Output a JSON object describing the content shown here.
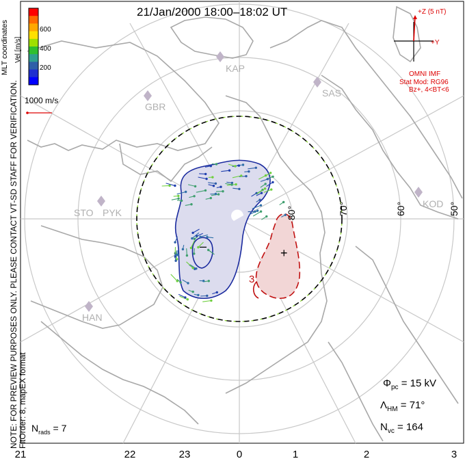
{
  "title": "21/Jan/2000 18:00–18:02 UT",
  "note": [
    "NOTE: FOR PREVIEW PURPOSES ONLY. PLEASE CONTACT VT-SD STAFF FOR VERIFICATION.",
    "FitOrder: 8, mapEX format"
  ],
  "coord_label": "MLT coordinates",
  "colorbar": {
    "title": "Vel [m/s]",
    "ticks": [
      "600",
      "400",
      "200"
    ],
    "colors": [
      "#ff0000",
      "#ff6a00",
      "#ffa800",
      "#ffe000",
      "#9fe000",
      "#2fbf2f",
      "#2f9f8f",
      "#2f5fa8",
      "#1f2fd0",
      "#0000ff"
    ]
  },
  "velocity_reference": "1000 m/s",
  "imf": {
    "z_label": "+Z (5 nT)",
    "y_label": "+Y",
    "source": "OMNI IMF",
    "model": "Stat Mod: RG96",
    "condition": "Bz+, 4<BT<6"
  },
  "stats": {
    "phi_pc_label": "Φ",
    "phi_pc_sub": "pc",
    "phi_pc_value": "= 15 kV",
    "lambda_hm_label": "Λ",
    "lambda_hm_sub": "HM",
    "lambda_hm_value": "= 71°",
    "n_vc_label": "N",
    "n_vc_sub": "vc",
    "n_vc_value": "= 164"
  },
  "nrads": {
    "label": "N",
    "sub": "rads",
    "value": "= 7"
  },
  "mlt_ticks": [
    "21",
    "22",
    "23",
    "0",
    "1",
    "2",
    "3"
  ],
  "lat_labels": [
    "80°",
    "70°",
    "60°",
    "50°"
  ],
  "stations": [
    "KAP",
    "SAS",
    "GBR",
    "STO",
    "PYK",
    "KOD",
    "HAN"
  ],
  "contour_signs": {
    "minus": "–",
    "plus": "+",
    "value": "3"
  }
}
